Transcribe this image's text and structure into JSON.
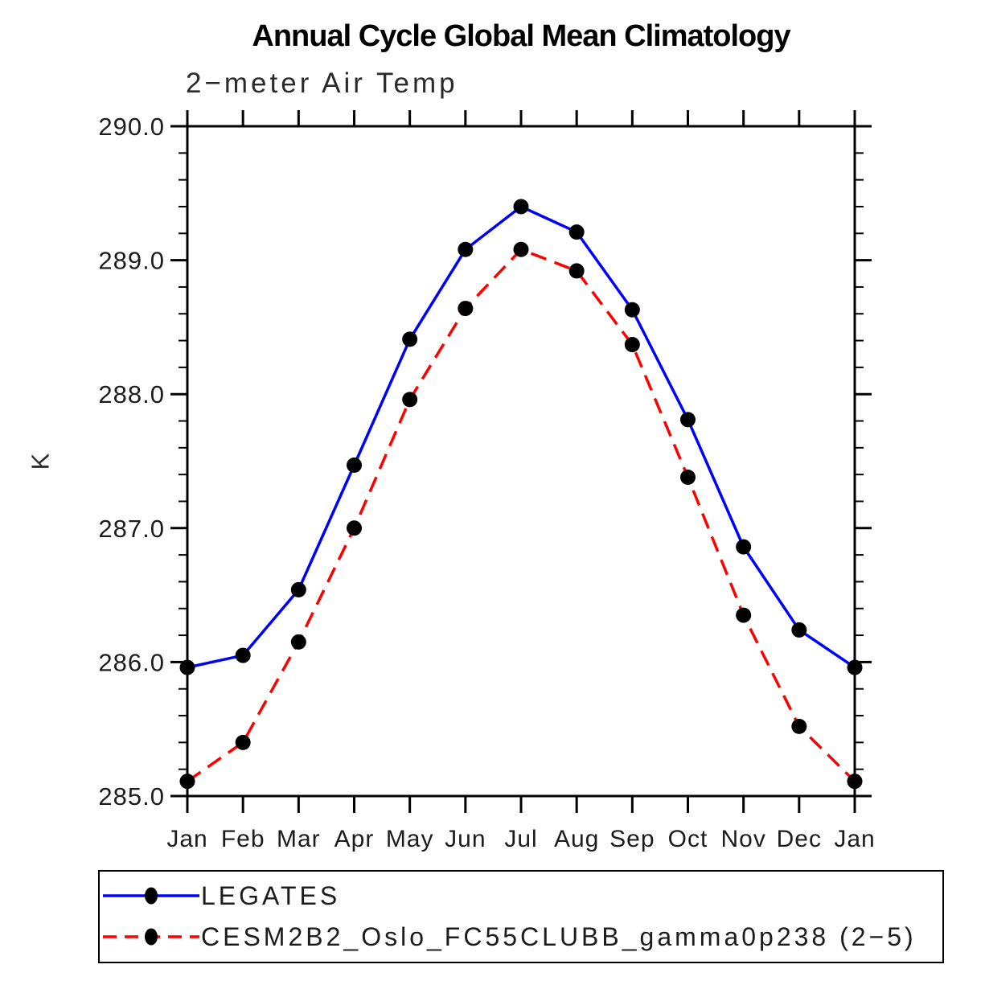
{
  "page": {
    "title": "Annual Cycle Global Mean Climatology",
    "subtitle": "2−meter Air Temp",
    "ylabel": "K"
  },
  "chart_data": {
    "type": "line",
    "title": "Annual Cycle Global Mean Climatology",
    "subtitle": "2−meter Air Temp",
    "xlabel": "",
    "ylabel": "K",
    "x_categories": [
      "Jan",
      "Feb",
      "Mar",
      "Apr",
      "May",
      "Jun",
      "Jul",
      "Aug",
      "Sep",
      "Oct",
      "Nov",
      "Dec",
      "Jan"
    ],
    "ylim": [
      285.0,
      290.0
    ],
    "y_major_tick_labels": [
      "285.0",
      "286.0",
      "287.0",
      "288.0",
      "289.0",
      "290.0"
    ],
    "y_minor_step": 0.2,
    "grid": false,
    "tick_direction": "out",
    "legend_position": "bottom",
    "axis_color": "#000000",
    "label_color": "#1c1c1c",
    "series": [
      {
        "name": "LEGATES",
        "color": "#0000ff",
        "style": "solid",
        "marker": "filled-circle",
        "marker_color": "#000000",
        "values": [
          285.96,
          286.05,
          286.54,
          287.47,
          288.41,
          289.08,
          289.4,
          289.21,
          288.63,
          287.81,
          286.86,
          286.24,
          285.96
        ]
      },
      {
        "name": "CESM2B2_Oslo_FC55CLUBB_gamma0p238 (2−5)",
        "color": "#ff0000",
        "style": "dashed",
        "marker": "filled-circle",
        "marker_color": "#000000",
        "values": [
          285.11,
          285.4,
          286.15,
          287.0,
          287.96,
          288.64,
          289.08,
          288.92,
          288.37,
          287.38,
          286.35,
          285.52,
          285.11
        ]
      }
    ]
  }
}
